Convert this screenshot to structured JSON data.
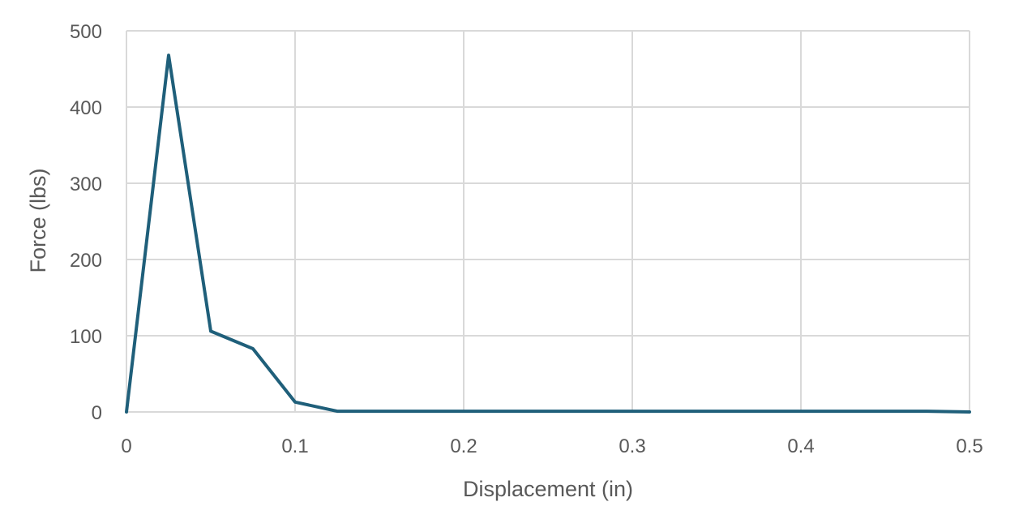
{
  "chart_data": {
    "type": "line",
    "title": "",
    "xlabel": "Displacement (in)",
    "ylabel": "Force (lbs)",
    "xlim": [
      0,
      0.5
    ],
    "ylim": [
      0,
      500
    ],
    "x_ticks": [
      "0",
      "0.1",
      "0.2",
      "0.3",
      "0.4",
      "0.5"
    ],
    "x_tick_values": [
      0,
      0.1,
      0.2,
      0.3,
      0.4,
      0.5
    ],
    "y_ticks": [
      "0",
      "100",
      "200",
      "300",
      "400",
      "500"
    ],
    "y_tick_values": [
      0,
      100,
      200,
      300,
      400,
      500
    ],
    "grid": {
      "x": true,
      "y": true
    },
    "legend": "none",
    "series": [
      {
        "color": "#1f5f7a",
        "x": [
          0,
          0.025,
          0.05,
          0.075,
          0.1,
          0.125,
          0.15,
          0.2,
          0.25,
          0.3,
          0.35,
          0.4,
          0.45,
          0.475,
          0.5
        ],
        "y": [
          0,
          468,
          106,
          83,
          13,
          1,
          1,
          1,
          1,
          1,
          1,
          1,
          1,
          1,
          0
        ]
      }
    ]
  }
}
